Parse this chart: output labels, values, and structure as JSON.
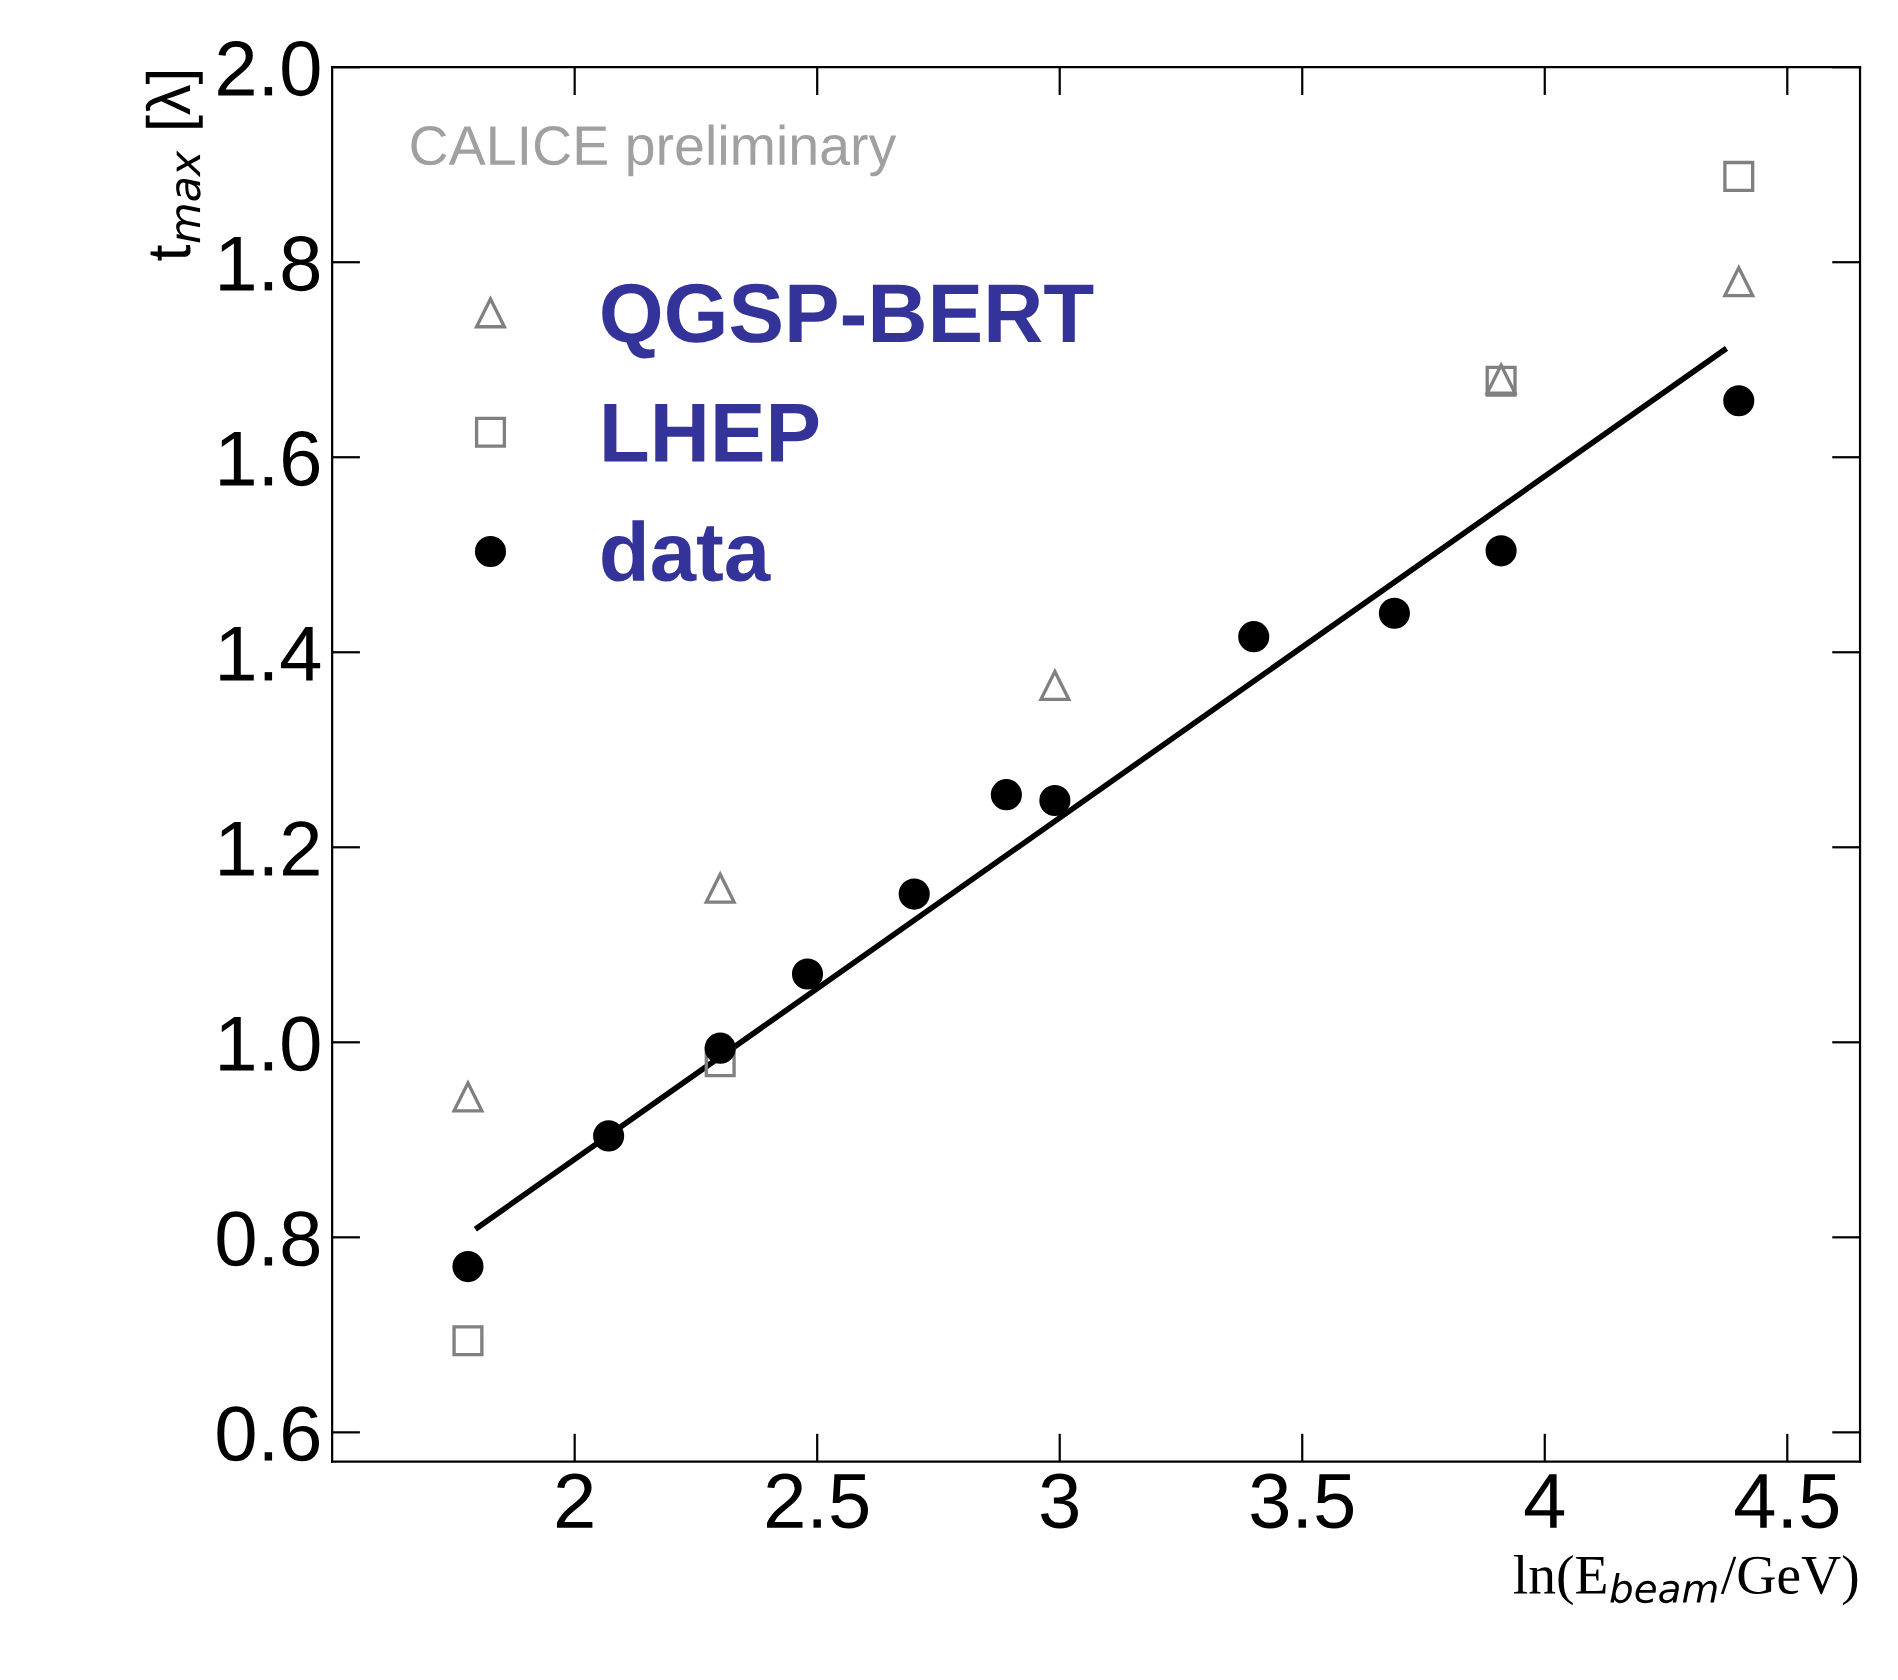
{
  "chart_data": {
    "type": "scatter",
    "xlabel": "ln(E$_{beam}$/GeV)",
    "ylabel": "t$_{max}$ [λ]",
    "xlim": [
      1.5,
      4.65
    ],
    "ylim": [
      0.57,
      2.0
    ],
    "xticks": [
      2,
      2.5,
      3,
      3.5,
      4,
      4.5
    ],
    "yticks": [
      0.6,
      0.8,
      {
        "value": 1.0,
        "label": "1.0"
      },
      1.2,
      1.4,
      1.6,
      1.8,
      {
        "value": 2.0,
        "label": "2.0"
      }
    ],
    "annotations": [
      "CALICE preliminary"
    ],
    "legend": "top left",
    "grid": false,
    "series": [
      {
        "name": "QGSP-BERT",
        "type": "scatter",
        "marker": "triangle",
        "color": "#808080",
        "x": [
          1.78,
          2.3,
          2.99,
          3.91,
          4.4
        ],
        "values": [
          0.944,
          1.158,
          1.366,
          1.68,
          1.78
        ]
      },
      {
        "name": "LHEP",
        "type": "scatter",
        "marker": "square",
        "color": "#808080",
        "x": [
          1.78,
          2.3,
          3.91,
          4.4
        ],
        "values": [
          0.694,
          0.98,
          1.678,
          1.888
        ]
      },
      {
        "name": "data",
        "type": "scatter",
        "marker": "circle",
        "color": "#000000",
        "x": [
          1.78,
          2.07,
          2.3,
          2.48,
          2.7,
          2.89,
          2.99,
          3.4,
          3.69,
          3.91,
          4.4
        ],
        "values": [
          0.77,
          0.904,
          0.994,
          1.07,
          1.152,
          1.254,
          1.248,
          1.416,
          1.44,
          1.504,
          1.658
        ]
      },
      {
        "type": "line",
        "marker": "none",
        "color": "#000000",
        "x": [
          1.8,
          4.37
        ],
        "values": [
          0.81,
          1.71
        ]
      }
    ]
  }
}
